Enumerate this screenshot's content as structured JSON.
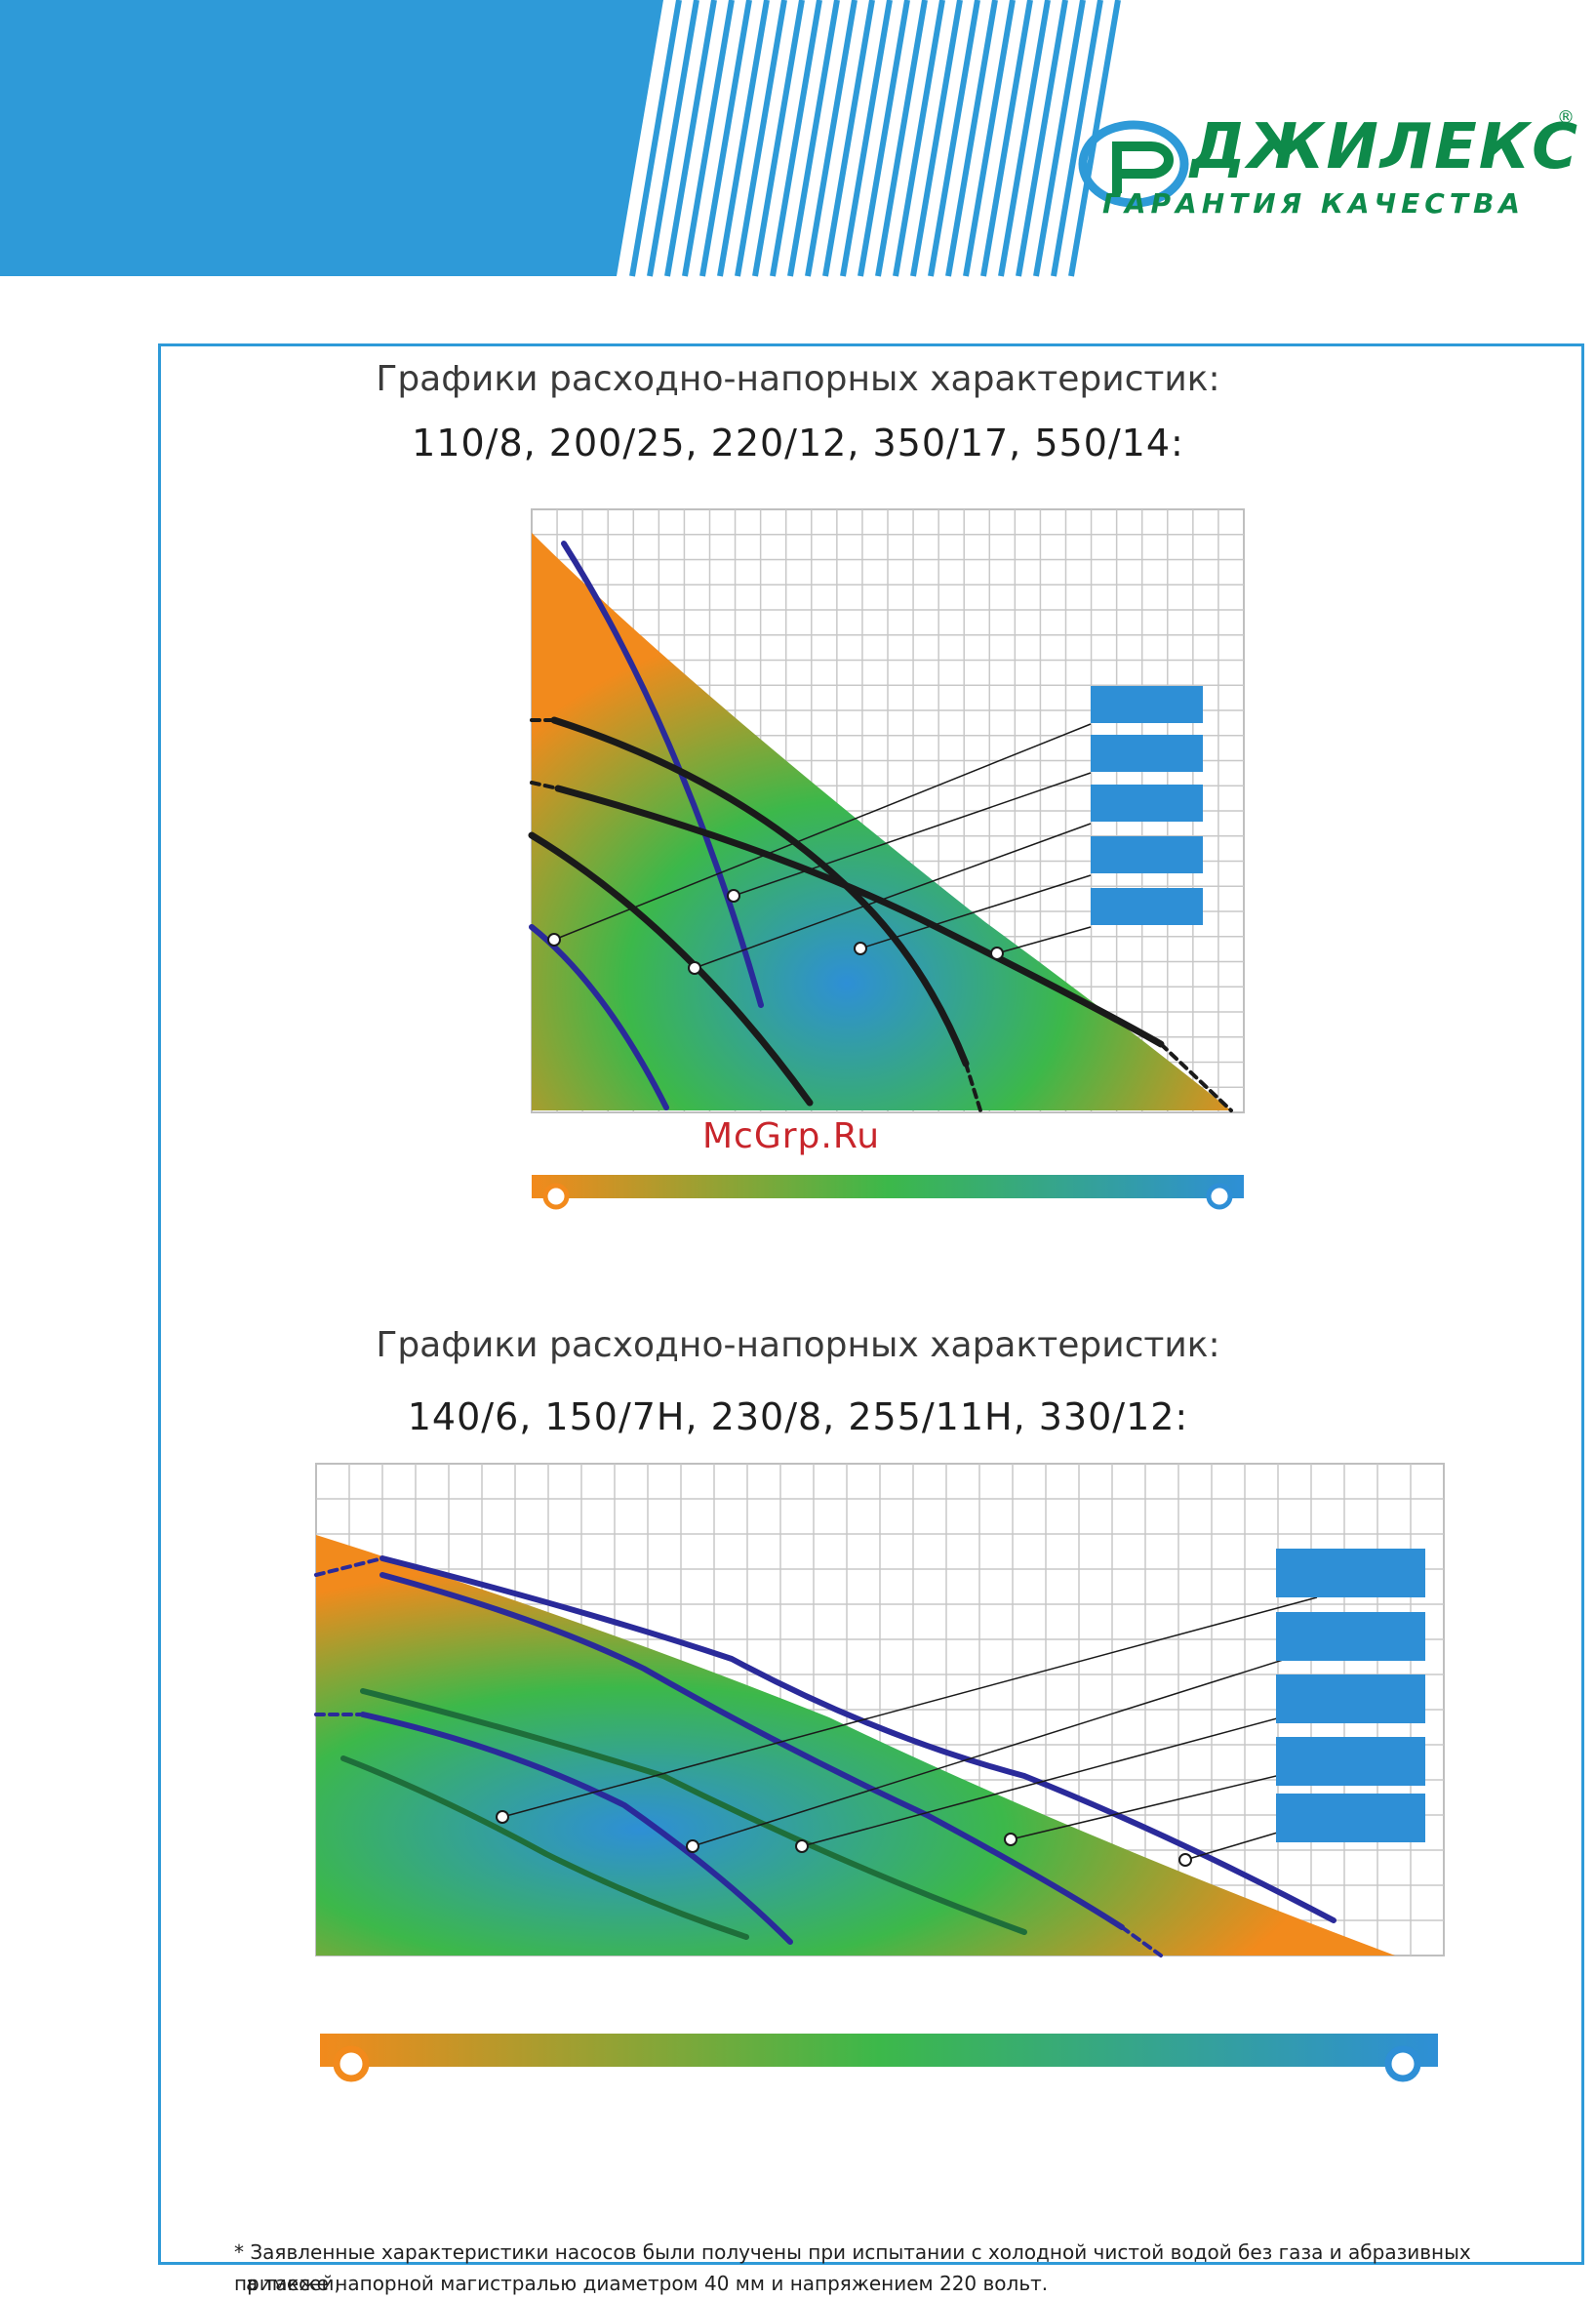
{
  "brand": {
    "name": "ДЖИЛЕКС",
    "registered": "®",
    "slogan": "ГАРАНТИЯ КАЧЕСТВА"
  },
  "colors": {
    "brand_blue": "#2e9ad8",
    "brand_green": "#0e8a4a",
    "gradient_orange": "#f28a1c",
    "gradient_green": "#3cb84a",
    "gradient_blue": "#2e8fd6"
  },
  "charts": [
    {
      "title_line1": "Графики расходно-напорных характеристик:",
      "title_line2": "110/8, 200/25, 220/12, 350/17, 550/14:"
    },
    {
      "title_line1": "Графики расходно-напорных характеристик:",
      "title_line2": "140/6, 150/7Н, 230/8, 255/11Н, 330/12:"
    }
  ],
  "watermark": "McGrp.Ru",
  "footnote": {
    "line1": "* Заявленные характеристики насосов были получены при испытании с холодной чистой водой без газа и абразивных примесей,",
    "line2": "а также напорной магистралью диаметром 40 мм и напряжением 220 вольт."
  }
}
